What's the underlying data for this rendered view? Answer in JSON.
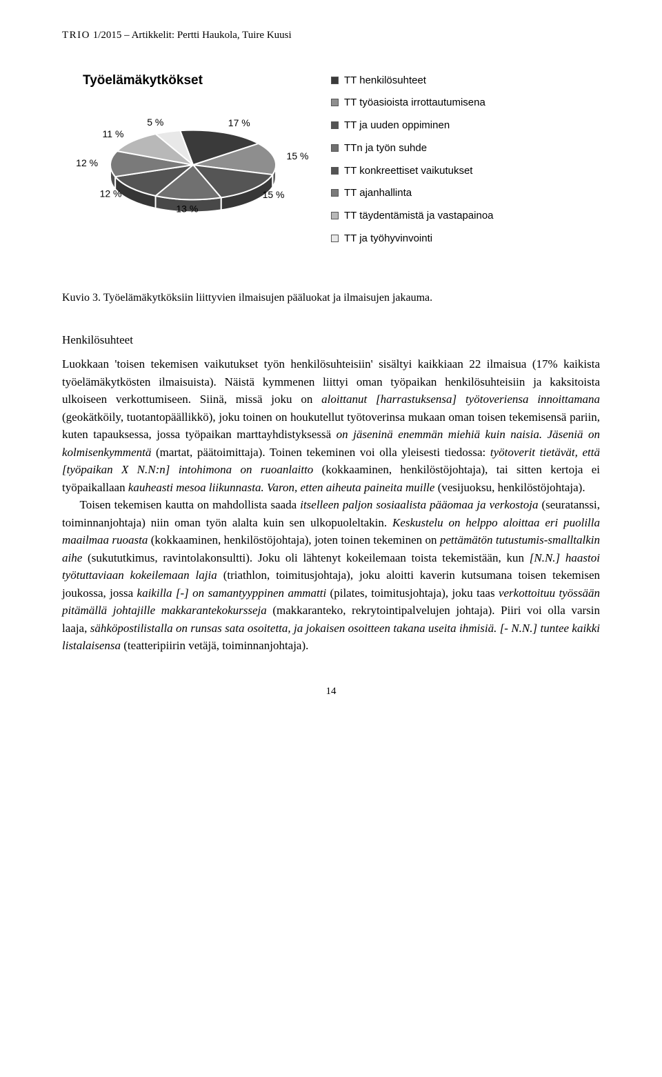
{
  "running_head": {
    "journal": "TRIO",
    "issue": " 1/2015 – Artikkelit: Pertti Haukola, Tuire Kuusi"
  },
  "chart": {
    "type": "pie",
    "title": "Työelämäkytkökset",
    "slices": [
      {
        "label": "17 %",
        "value": 17,
        "color": "#3a3a3a",
        "legend": "TT henkilösuhteet"
      },
      {
        "label": "15 %",
        "value": 15,
        "color": "#8e8e8e",
        "legend": "TT työasioista irrottautumisena"
      },
      {
        "label": "15 %",
        "value": 15,
        "color": "#555555",
        "legend": "TT ja uuden oppiminen"
      },
      {
        "label": "13 %",
        "value": 13,
        "color": "#707070",
        "legend": "TTn ja työn suhde"
      },
      {
        "label": "12 %",
        "value": 12,
        "color": "#545454",
        "legend": "TT konkreettiset vaikutukset"
      },
      {
        "label": "12 %",
        "value": 12,
        "color": "#7a7a7a",
        "legend": "TT ajanhallinta"
      },
      {
        "label": "11 %",
        "value": 11,
        "color": "#b8b8b8",
        "legend": "TT täydentämistä ja vastapainoa"
      },
      {
        "label": "5 %",
        "value": 5,
        "color": "#e8e8e8",
        "legend": "TT ja työhyvinvointi"
      }
    ],
    "stroke": "#ffffff",
    "stroke_width": 2,
    "label_fontsize": 14,
    "label_font": "Arial",
    "label_color": "#000000",
    "tilt": 0.42,
    "depth": 18
  },
  "caption_prefix": "Kuvio 3.",
  "caption_text": " Työelämäkytköksiin liittyvien ilmaisujen pääluokat ja ilmaisujen jakauma.",
  "section_heading": "Henkilösuhteet",
  "page_number": "14",
  "para1_parts": [
    {
      "t": "Luokkaan 'toisen tekemisen vaikutukset työn henkilösuhteisiin' sisältyi kaikkiaan 22 ilmaisua (17% kaikista työelämäkytkösten ilmaisuista). Näistä kymmenen liittyi oman työpaikan henkilösuhteisiin ja kaksitoista ulkoiseen verkottumiseen. Siinä, missä joku on ",
      "i": false
    },
    {
      "t": "aloittanut [harrastuksensa] työtoveriensa innoittamana",
      "i": true
    },
    {
      "t": " (geokätköily, tuotantopäällikkö), joku toinen on houkutellut työtoverinsa mukaan oman toisen tekemisensä pariin, kuten tapauksessa, jossa työpaikan marttayhdistyksessä ",
      "i": false
    },
    {
      "t": "on jäseninä enemmän miehiä kuin naisia. Jäseniä on kolmisenkymmentä",
      "i": true
    },
    {
      "t": " (martat, päätoimittaja). Toinen tekeminen voi olla yleisesti tiedossa: ",
      "i": false
    },
    {
      "t": "työtoverit tietävät, että [työpaikan X N.N:n] intohimona on ruoanlaitto",
      "i": true
    },
    {
      "t": " (kokkaaminen, henkilöstöjohtaja), tai sitten kertoja ei työpaikallaan ",
      "i": false
    },
    {
      "t": "kauheasti mesoa liikunnasta. Varon, etten aiheuta paineita muille",
      "i": true
    },
    {
      "t": " (vesijuoksu, henkilöstöjohtaja).",
      "i": false
    }
  ],
  "para2_parts": [
    {
      "t": "Toisen tekemisen kautta on mahdollista saada ",
      "i": false
    },
    {
      "t": "itselleen paljon sosiaalista pääomaa ja verkostoja",
      "i": true
    },
    {
      "t": " (seuratanssi, toiminnanjohtaja) niin oman työn alalta kuin sen ulkopuoleltakin. ",
      "i": false
    },
    {
      "t": "Keskustelu on helppo aloittaa eri puolilla maailmaa ruoasta",
      "i": true
    },
    {
      "t": " (kokkaaminen, henkilöstöjohtaja), joten toinen tekeminen on ",
      "i": false
    },
    {
      "t": "pettämätön tutustumis-smalltalkin aihe",
      "i": true
    },
    {
      "t": " (sukututkimus, ravintolakonsultti). Joku oli lähtenyt kokeilemaan toista tekemistään, kun ",
      "i": false
    },
    {
      "t": "[N.N.] haastoi työtuttaviaan kokeilemaan lajia",
      "i": true
    },
    {
      "t": " (triathlon, toimitusjohtaja), joku aloitti kaverin kutsumana toisen tekemisen joukossa, jossa ",
      "i": false
    },
    {
      "t": "kaikilla [-] on samantyyppinen ammatti",
      "i": true
    },
    {
      "t": " (pilates, toimitusjohtaja), joku taas ",
      "i": false
    },
    {
      "t": "verkottoituu työssään pitämällä johtajille makkarantekokursseja",
      "i": true
    },
    {
      "t": " (makkaranteko, rekrytointipalvelujen johtaja). Piiri voi olla varsin laaja, ",
      "i": false
    },
    {
      "t": "sähköpostilistalla on runsas sata osoitetta, ja jokaisen osoitteen takana useita ihmisiä. [- N.N.] tuntee kaikki listalaisensa",
      "i": true
    },
    {
      "t": " (teatteripiirin vetäjä, toiminnanjohtaja).",
      "i": false
    }
  ]
}
